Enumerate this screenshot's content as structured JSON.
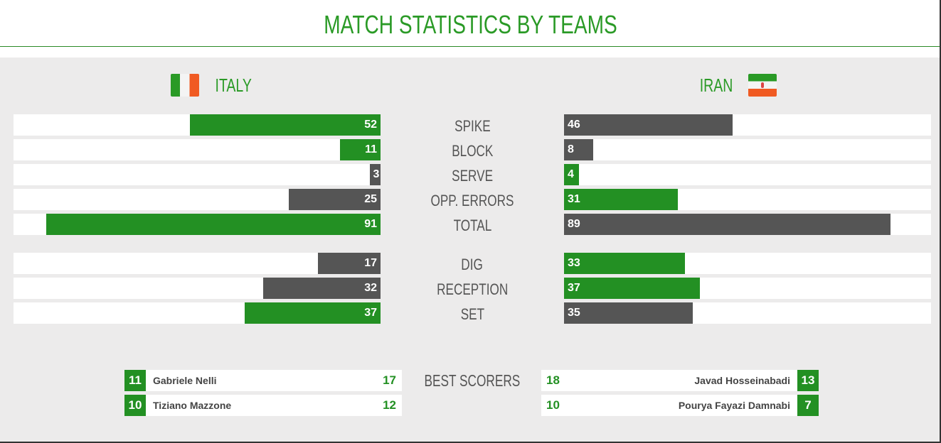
{
  "title": "MATCH STATISTICS BY TEAMS",
  "teams": {
    "left": {
      "name": "ITALY",
      "flag": "italy-flag"
    },
    "right": {
      "name": "IRAN",
      "flag": "iran-flag"
    }
  },
  "colors": {
    "accent": "#239023",
    "secondary": "#555555",
    "background": "#ecebeb"
  },
  "scale_max": 100,
  "stats": [
    {
      "label": "SPIKE",
      "left": 52,
      "right": 46
    },
    {
      "label": "BLOCK",
      "left": 11,
      "right": 8
    },
    {
      "label": "SERVE",
      "left": 3,
      "right": 4
    },
    {
      "label": "OPP. ERRORS",
      "left": 25,
      "right": 31
    },
    {
      "label": "TOTAL",
      "left": 91,
      "right": 89
    },
    {
      "label": "DIG",
      "left": 17,
      "right": 33
    },
    {
      "label": "RECEPTION",
      "left": 32,
      "right": 37
    },
    {
      "label": "SET",
      "left": 37,
      "right": 35
    }
  ],
  "best_scorers": {
    "label": "BEST SCORERS",
    "left": [
      {
        "number": "11",
        "name": "Gabriele Nelli",
        "points": "17"
      },
      {
        "number": "10",
        "name": "Tiziano Mazzone",
        "points": "12"
      }
    ],
    "right": [
      {
        "number": "13",
        "name": "Javad Hosseinabadi",
        "points": "18"
      },
      {
        "number": "7",
        "name": "Pourya Fayazi Damnabi",
        "points": "10"
      }
    ]
  }
}
